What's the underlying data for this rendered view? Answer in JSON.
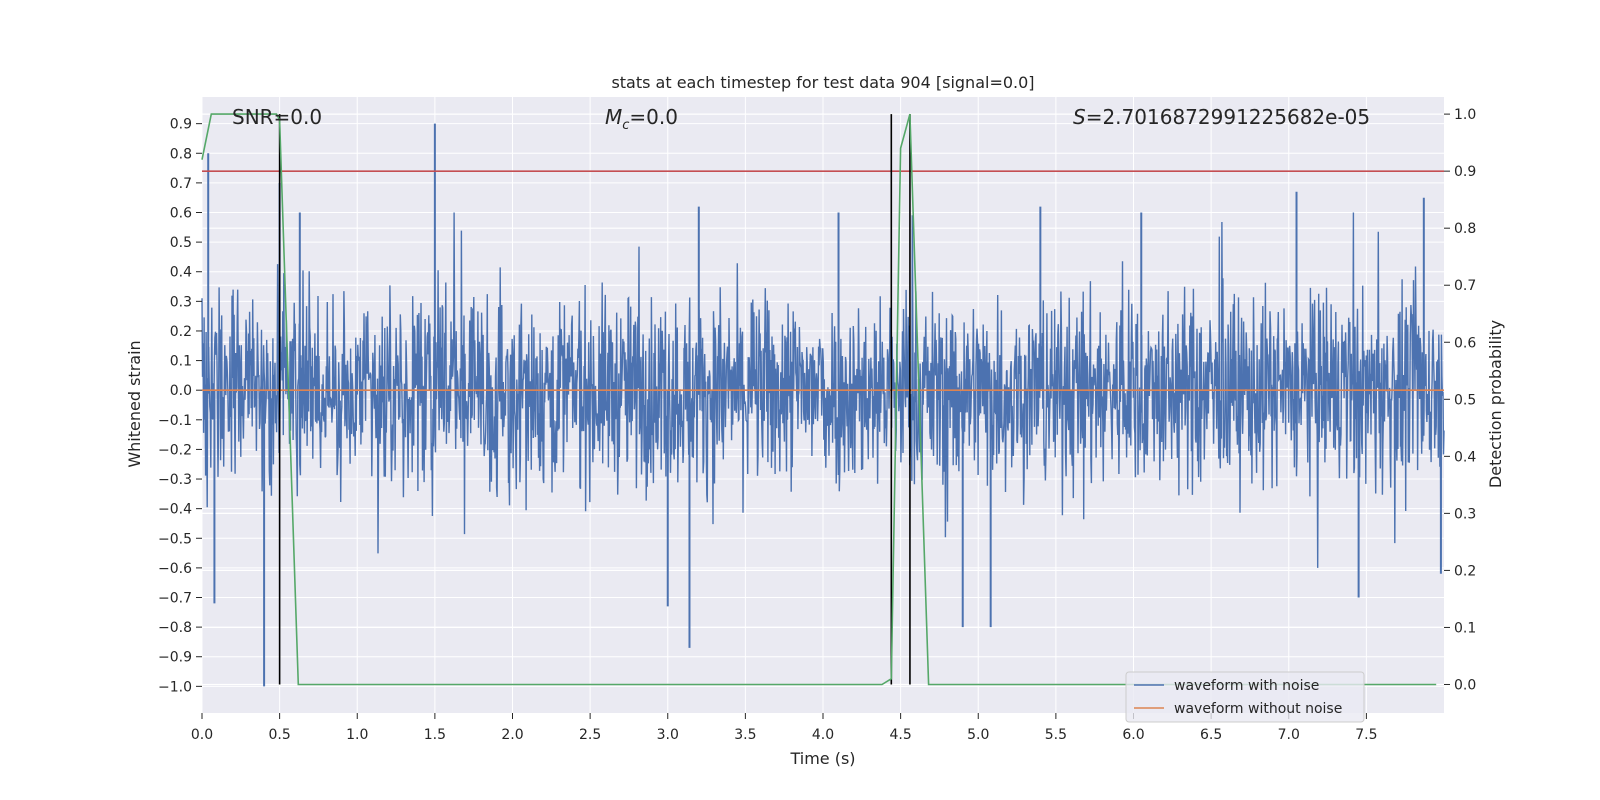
{
  "chart_data": {
    "type": "line",
    "title": "stats at each timestep for test data 904 [signal=0.0]",
    "xlabel": "Time (s)",
    "ylabel": "Whitened strain",
    "y2label": "Detection probability",
    "xlim": [
      0.0,
      8.0
    ],
    "ylim": [
      -1.09,
      0.99
    ],
    "y2lim": [
      -0.05,
      1.03
    ],
    "xticks": [
      "0.0",
      "0.5",
      "1.0",
      "1.5",
      "2.0",
      "2.5",
      "3.0",
      "3.5",
      "4.0",
      "4.5",
      "5.0",
      "5.5",
      "6.0",
      "6.5",
      "7.0",
      "7.5"
    ],
    "yticks": [
      "0.9",
      "0.8",
      "0.7",
      "0.6",
      "0.5",
      "0.4",
      "0.3",
      "0.2",
      "0.1",
      "0.0",
      "−0.1",
      "−0.2",
      "−0.3",
      "−0.4",
      "−0.5",
      "−0.6",
      "−0.7",
      "−0.8",
      "−0.9",
      "−1.0"
    ],
    "y2ticks": [
      "1.0",
      "0.9",
      "0.8",
      "0.7",
      "0.6",
      "0.5",
      "0.4",
      "0.3",
      "0.2",
      "0.1",
      "0.0"
    ],
    "annotations": {
      "snr": "SNR=0.0",
      "mc_symbol": "M",
      "mc_sub": "c",
      "mc_value": "=0.0",
      "s_symbol": "S",
      "s_value": "=2.7016872991225682e-05"
    },
    "threshold": 0.9,
    "detection_markers_s": [
      0.5,
      4.44,
      4.56
    ],
    "series": [
      {
        "name": "waveform with noise",
        "color": "#4c72b0",
        "note": "dense whitened noise, typical envelope ±0.4 with spikes; notable extremes",
        "spikes": [
          [
            0.04,
            0.8
          ],
          [
            0.08,
            -0.72
          ],
          [
            0.4,
            -1.0
          ],
          [
            0.5,
            0.7
          ],
          [
            0.63,
            0.6
          ],
          [
            1.5,
            0.9
          ],
          [
            3.0,
            -0.73
          ],
          [
            3.14,
            -0.87
          ],
          [
            3.2,
            0.62
          ],
          [
            4.1,
            0.6
          ],
          [
            4.9,
            -0.8
          ],
          [
            5.08,
            -0.8
          ],
          [
            5.4,
            0.62
          ],
          [
            6.05,
            0.6
          ],
          [
            7.05,
            0.67
          ],
          [
            7.45,
            -0.7
          ],
          [
            7.87,
            0.65
          ],
          [
            7.98,
            -0.62
          ]
        ]
      },
      {
        "name": "waveform without noise",
        "color": "#dd8452",
        "constant": 0.0
      },
      {
        "name": "detection probability",
        "color": "#55a868",
        "axis": "right",
        "x": [
          0.0,
          0.06,
          0.1,
          0.15,
          0.2,
          0.3,
          0.4,
          0.48,
          0.5,
          0.62,
          0.7,
          1.0,
          2.0,
          3.0,
          4.0,
          4.38,
          4.44,
          4.5,
          4.56,
          4.68,
          5.0,
          6.0,
          7.0,
          7.95
        ],
        "values": [
          0.92,
          1.0,
          1.0,
          1.0,
          1.0,
          1.0,
          1.0,
          1.0,
          0.99,
          0.0,
          0.0,
          0.0,
          0.0,
          0.0,
          0.0,
          0.0,
          0.01,
          0.94,
          1.0,
          0.0,
          0.0,
          0.0,
          0.0,
          0.0
        ]
      }
    ],
    "legend": [
      "waveform with noise",
      "waveform without noise"
    ],
    "legend_position": "lower-right",
    "threshold_color": "#c44e52",
    "marker_color": "#000000"
  }
}
